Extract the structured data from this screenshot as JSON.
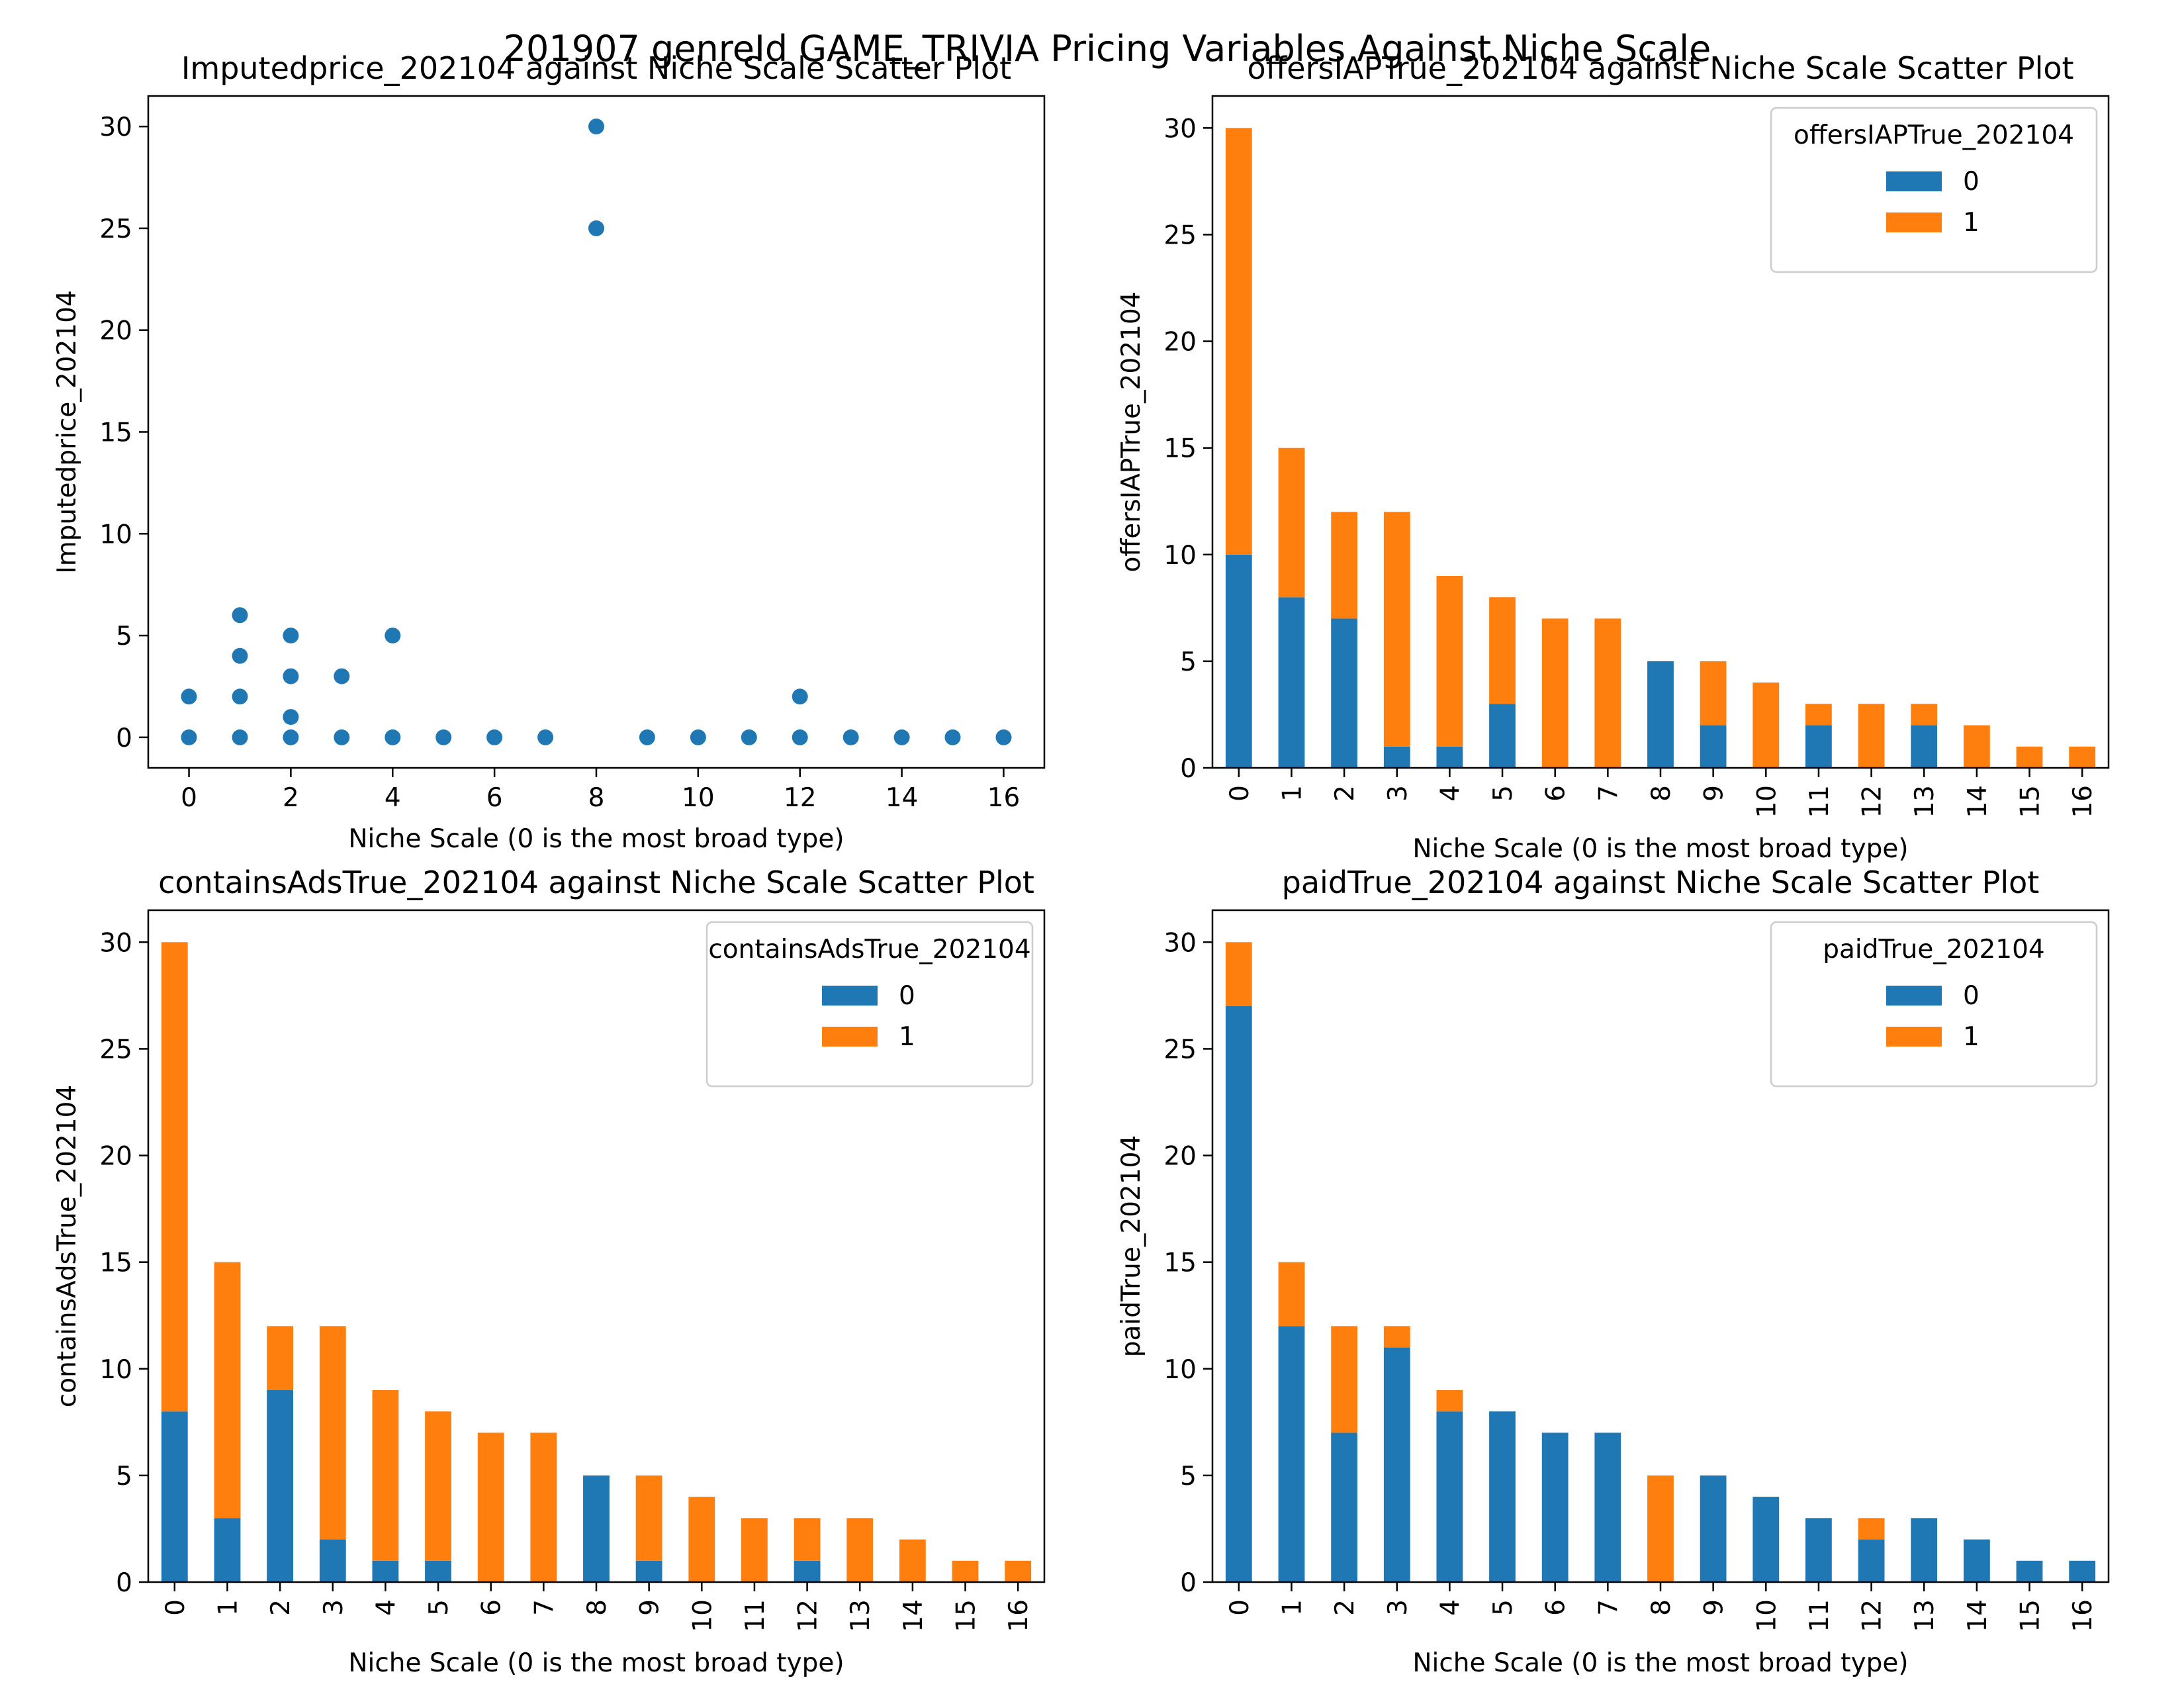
{
  "figure_title": "201907 genreId GAME_TRIVIA Pricing Variables Against Niche Scale",
  "colors": {
    "series0": "#1f77b4",
    "series1": "#ff7f0e",
    "axis": "#000000"
  },
  "chart_data": [
    {
      "type": "scatter",
      "title": "Imputedprice_202104 against Niche Scale Scatter Plot",
      "xlabel": "Niche Scale (0 is the most broad type)",
      "ylabel": "Imputedprice_202104",
      "xlim": [
        -0.8,
        16.8
      ],
      "ylim": [
        -1.5,
        31.5
      ],
      "xticks": [
        0,
        2,
        4,
        6,
        8,
        10,
        12,
        14,
        16
      ],
      "yticks": [
        0,
        5,
        10,
        15,
        20,
        25,
        30
      ],
      "points": [
        [
          0,
          0
        ],
        [
          0,
          2
        ],
        [
          1,
          0
        ],
        [
          1,
          2
        ],
        [
          1,
          4
        ],
        [
          1,
          6
        ],
        [
          2,
          0
        ],
        [
          2,
          1
        ],
        [
          2,
          3
        ],
        [
          2,
          5
        ],
        [
          3,
          0
        ],
        [
          3,
          3
        ],
        [
          4,
          0
        ],
        [
          4,
          5
        ],
        [
          5,
          0
        ],
        [
          6,
          0
        ],
        [
          7,
          0
        ],
        [
          8,
          25
        ],
        [
          8,
          30
        ],
        [
          9,
          0
        ],
        [
          10,
          0
        ],
        [
          11,
          0
        ],
        [
          12,
          0
        ],
        [
          12,
          2
        ],
        [
          13,
          0
        ],
        [
          14,
          0
        ],
        [
          15,
          0
        ],
        [
          16,
          0
        ]
      ]
    },
    {
      "type": "bar",
      "stacked": true,
      "title": "offersIAPTrue_202104 against Niche Scale Scatter Plot",
      "xlabel": "Niche Scale (0 is the most broad type)",
      "ylabel": "offersIAPTrue_202104",
      "categories": [
        "0",
        "1",
        "2",
        "3",
        "4",
        "5",
        "6",
        "7",
        "8",
        "9",
        "10",
        "11",
        "12",
        "13",
        "14",
        "15",
        "16"
      ],
      "ylim": [
        0,
        31.5
      ],
      "yticks": [
        0,
        5,
        10,
        15,
        20,
        25,
        30
      ],
      "legend": {
        "title": "offersIAPTrue_202104",
        "placement": "upper-right"
      },
      "series": [
        {
          "name": "0",
          "values": [
            10,
            8,
            7,
            1,
            1,
            3,
            0,
            0,
            5,
            2,
            0,
            2,
            0,
            2,
            0,
            0,
            0
          ]
        },
        {
          "name": "1",
          "values": [
            20,
            7,
            5,
            11,
            8,
            5,
            7,
            7,
            0,
            3,
            4,
            1,
            3,
            1,
            2,
            1,
            1
          ]
        }
      ]
    },
    {
      "type": "bar",
      "stacked": true,
      "title": "containsAdsTrue_202104 against Niche Scale Scatter Plot",
      "xlabel": "Niche Scale (0 is the most broad type)",
      "ylabel": "containsAdsTrue_202104",
      "categories": [
        "0",
        "1",
        "2",
        "3",
        "4",
        "5",
        "6",
        "7",
        "8",
        "9",
        "10",
        "11",
        "12",
        "13",
        "14",
        "15",
        "16"
      ],
      "ylim": [
        0,
        31.5
      ],
      "yticks": [
        0,
        5,
        10,
        15,
        20,
        25,
        30
      ],
      "legend": {
        "title": "containsAdsTrue_202104",
        "placement": "upper-right"
      },
      "series": [
        {
          "name": "0",
          "values": [
            8,
            3,
            9,
            2,
            1,
            1,
            0,
            0,
            5,
            1,
            0,
            0,
            1,
            0,
            0,
            0,
            0
          ]
        },
        {
          "name": "1",
          "values": [
            22,
            12,
            3,
            10,
            8,
            7,
            7,
            7,
            0,
            4,
            4,
            3,
            2,
            3,
            2,
            1,
            1
          ]
        }
      ]
    },
    {
      "type": "bar",
      "stacked": true,
      "title": "paidTrue_202104 against Niche Scale Scatter Plot",
      "xlabel": "Niche Scale (0 is the most broad type)",
      "ylabel": "paidTrue_202104",
      "categories": [
        "0",
        "1",
        "2",
        "3",
        "4",
        "5",
        "6",
        "7",
        "8",
        "9",
        "10",
        "11",
        "12",
        "13",
        "14",
        "15",
        "16"
      ],
      "ylim": [
        0,
        31.5
      ],
      "yticks": [
        0,
        5,
        10,
        15,
        20,
        25,
        30
      ],
      "legend": {
        "title": "paidTrue_202104",
        "placement": "upper-right"
      },
      "series": [
        {
          "name": "0",
          "values": [
            27,
            12,
            7,
            11,
            8,
            8,
            7,
            7,
            0,
            5,
            4,
            3,
            2,
            3,
            2,
            1,
            1
          ]
        },
        {
          "name": "1",
          "values": [
            3,
            3,
            5,
            1,
            1,
            0,
            0,
            0,
            5,
            0,
            0,
            0,
            1,
            0,
            0,
            0,
            0
          ]
        }
      ]
    }
  ]
}
